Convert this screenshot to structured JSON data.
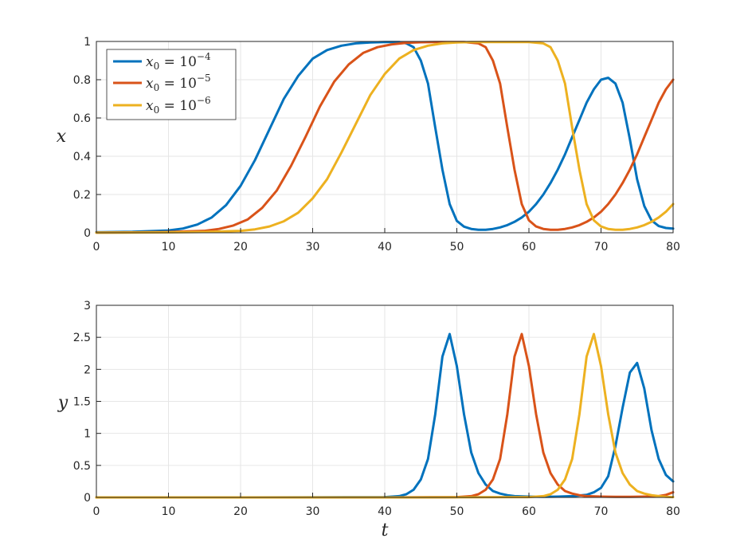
{
  "chart_data": [
    {
      "type": "line",
      "title": "",
      "xlabel": "",
      "ylabel": "x",
      "xlim": [
        0,
        80
      ],
      "ylim": [
        0,
        1
      ],
      "x_ticks": [
        "0",
        "10",
        "20",
        "30",
        "40",
        "50",
        "60",
        "70",
        "80"
      ],
      "y_ticks": [
        "0",
        "0.2",
        "0.4",
        "0.6",
        "0.8",
        "1"
      ],
      "grid": true,
      "legend": {
        "placement": "top-left",
        "entries": [
          {
            "base": "x",
            "sub": "0",
            "eq": " = 10",
            "exp": "−4"
          },
          {
            "base": "x",
            "sub": "0",
            "eq": " = 10",
            "exp": "−5"
          },
          {
            "base": "x",
            "sub": "0",
            "eq": " = 10",
            "exp": "−6"
          }
        ]
      },
      "series": [
        {
          "color": "#0072BD",
          "x": [
            0,
            5,
            10,
            12,
            14,
            16,
            18,
            20,
            22,
            24,
            26,
            28,
            30,
            32,
            34,
            36,
            38,
            40,
            42,
            43,
            44,
            45,
            46,
            47,
            48,
            49,
            50,
            51,
            52,
            53,
            54,
            55,
            56,
            57,
            58,
            59,
            60,
            61,
            62,
            63,
            64,
            65,
            66,
            67,
            68,
            69,
            70,
            71,
            72,
            73,
            74,
            75,
            76,
            77,
            78,
            79,
            80
          ],
          "y": [
            0.003,
            0.005,
            0.012,
            0.022,
            0.043,
            0.08,
            0.145,
            0.245,
            0.38,
            0.54,
            0.7,
            0.82,
            0.91,
            0.955,
            0.978,
            0.99,
            0.995,
            0.997,
            0.997,
            0.99,
            0.97,
            0.9,
            0.78,
            0.55,
            0.33,
            0.15,
            0.062,
            0.032,
            0.02,
            0.016,
            0.016,
            0.02,
            0.028,
            0.04,
            0.057,
            0.08,
            0.11,
            0.15,
            0.2,
            0.26,
            0.33,
            0.41,
            0.5,
            0.59,
            0.68,
            0.75,
            0.8,
            0.81,
            0.78,
            0.68,
            0.49,
            0.28,
            0.14,
            0.065,
            0.035,
            0.025,
            0.022
          ]
        },
        {
          "color": "#D95319",
          "x": [
            0,
            5,
            10,
            15,
            17,
            19,
            21,
            23,
            25,
            27,
            29,
            31,
            33,
            35,
            37,
            39,
            41,
            43,
            45,
            47,
            49,
            51,
            53,
            54,
            55,
            56,
            57,
            58,
            59,
            60,
            61,
            62,
            63,
            64,
            65,
            66,
            67,
            68,
            69,
            70,
            71,
            72,
            73,
            74,
            75,
            76,
            77,
            78,
            79,
            80
          ],
          "y": [
            0.001,
            0.002,
            0.004,
            0.01,
            0.02,
            0.038,
            0.07,
            0.13,
            0.22,
            0.35,
            0.5,
            0.66,
            0.79,
            0.88,
            0.94,
            0.97,
            0.985,
            0.993,
            0.996,
            0.997,
            0.997,
            0.997,
            0.99,
            0.97,
            0.9,
            0.78,
            0.55,
            0.33,
            0.15,
            0.065,
            0.033,
            0.02,
            0.016,
            0.016,
            0.02,
            0.028,
            0.04,
            0.057,
            0.08,
            0.11,
            0.15,
            0.2,
            0.26,
            0.33,
            0.41,
            0.5,
            0.59,
            0.68,
            0.75,
            0.8
          ]
        },
        {
          "color": "#EDB120",
          "x": [
            0,
            5,
            10,
            15,
            20,
            22,
            24,
            26,
            28,
            30,
            32,
            34,
            36,
            38,
            40,
            42,
            44,
            46,
            48,
            50,
            52,
            54,
            56,
            58,
            60,
            62,
            63,
            64,
            65,
            66,
            67,
            68,
            69,
            70,
            71,
            72,
            73,
            74,
            75,
            76,
            77,
            78,
            79,
            80
          ],
          "y": [
            0.0005,
            0.001,
            0.002,
            0.004,
            0.01,
            0.018,
            0.033,
            0.06,
            0.105,
            0.18,
            0.28,
            0.42,
            0.57,
            0.72,
            0.83,
            0.91,
            0.955,
            0.978,
            0.99,
            0.995,
            0.997,
            0.997,
            0.997,
            0.997,
            0.997,
            0.99,
            0.97,
            0.9,
            0.78,
            0.55,
            0.33,
            0.15,
            0.065,
            0.033,
            0.02,
            0.016,
            0.016,
            0.02,
            0.028,
            0.04,
            0.057,
            0.08,
            0.11,
            0.15
          ]
        }
      ]
    },
    {
      "type": "line",
      "title": "",
      "xlabel": "t",
      "ylabel": "y",
      "xlim": [
        0,
        80
      ],
      "ylim": [
        0,
        3
      ],
      "x_ticks": [
        "0",
        "10",
        "20",
        "30",
        "40",
        "50",
        "60",
        "70",
        "80"
      ],
      "y_ticks": [
        "0",
        "0.5",
        "1",
        "1.5",
        "2",
        "2.5",
        "3"
      ],
      "grid": true,
      "series": [
        {
          "color": "#0072BD",
          "x": [
            0,
            20,
            40,
            42,
            43,
            44,
            45,
            46,
            47,
            48,
            49,
            50,
            51,
            52,
            53,
            54,
            55,
            56,
            57,
            58,
            60,
            62,
            64,
            66,
            68,
            69,
            70,
            71,
            72,
            73,
            74,
            75,
            76,
            77,
            78,
            79,
            80
          ],
          "y": [
            0,
            0,
            0.005,
            0.02,
            0.05,
            0.12,
            0.28,
            0.6,
            1.3,
            2.2,
            2.55,
            2.05,
            1.3,
            0.7,
            0.38,
            0.2,
            0.1,
            0.06,
            0.035,
            0.02,
            0.012,
            0.01,
            0.012,
            0.02,
            0.04,
            0.08,
            0.15,
            0.33,
            0.8,
            1.4,
            1.95,
            2.1,
            1.7,
            1.05,
            0.6,
            0.35,
            0.25
          ]
        },
        {
          "color": "#D95319",
          "x": [
            0,
            20,
            40,
            50,
            52,
            53,
            54,
            55,
            56,
            57,
            58,
            59,
            60,
            61,
            62,
            63,
            64,
            65,
            66,
            67,
            68,
            70,
            72,
            74,
            76,
            78,
            79,
            80
          ],
          "y": [
            0,
            0,
            0,
            0.005,
            0.02,
            0.05,
            0.12,
            0.28,
            0.6,
            1.3,
            2.2,
            2.55,
            2.05,
            1.3,
            0.7,
            0.38,
            0.2,
            0.1,
            0.06,
            0.035,
            0.02,
            0.012,
            0.01,
            0.01,
            0.012,
            0.02,
            0.04,
            0.08
          ]
        },
        {
          "color": "#EDB120",
          "x": [
            0,
            20,
            40,
            60,
            62,
            63,
            64,
            65,
            66,
            67,
            68,
            69,
            70,
            71,
            72,
            73,
            74,
            75,
            76,
            77,
            78,
            79,
            80
          ],
          "y": [
            0,
            0,
            0,
            0.005,
            0.02,
            0.05,
            0.12,
            0.28,
            0.6,
            1.3,
            2.2,
            2.55,
            2.05,
            1.3,
            0.7,
            0.38,
            0.2,
            0.1,
            0.06,
            0.035,
            0.02,
            0.01,
            0.005
          ]
        }
      ]
    }
  ]
}
